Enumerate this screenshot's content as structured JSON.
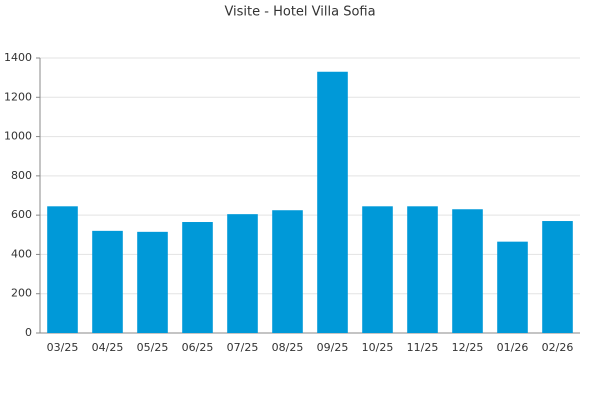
{
  "chart_data": {
    "type": "bar",
    "title": "Visite - Hotel Villa Sofia",
    "categories": [
      "03/25",
      "04/25",
      "05/25",
      "06/25",
      "07/25",
      "08/25",
      "09/25",
      "10/25",
      "11/25",
      "12/25",
      "01/26",
      "02/26"
    ],
    "values": [
      645,
      520,
      515,
      565,
      605,
      625,
      1330,
      645,
      645,
      630,
      465,
      570
    ],
    "color": "#0099d8",
    "ylim": [
      0,
      1400
    ],
    "yticks": [
      0,
      200,
      400,
      600,
      800,
      1000,
      1200,
      1400
    ],
    "grid": true
  }
}
